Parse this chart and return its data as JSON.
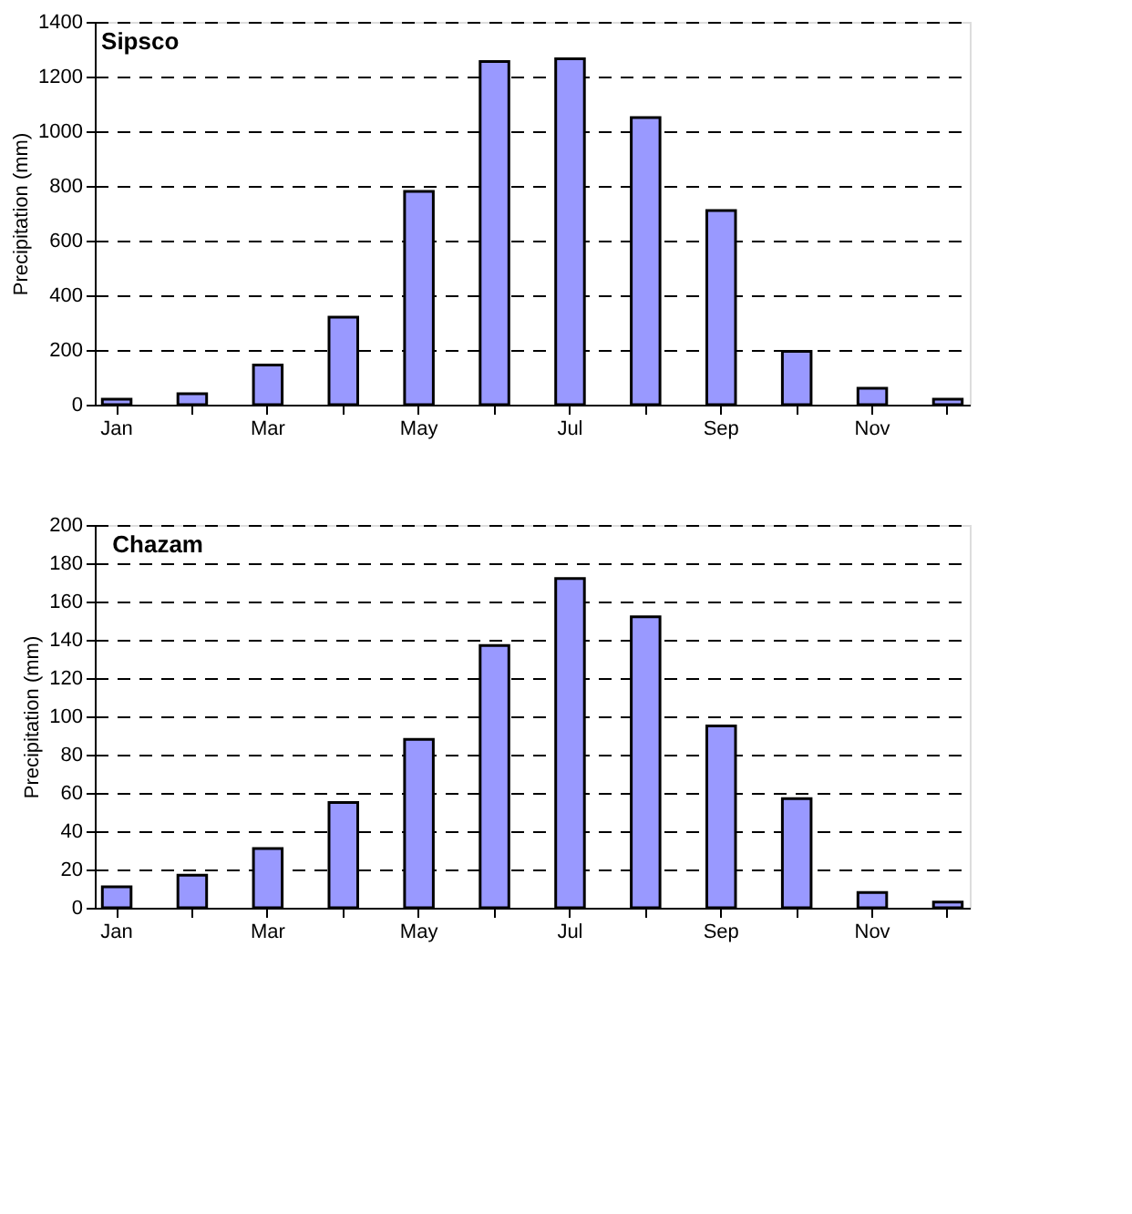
{
  "chart_data": [
    {
      "type": "bar",
      "title": "Sipsco",
      "ylabel": "Precipitation (mm)",
      "categories": [
        "Jan",
        null,
        "Mar",
        null,
        "May",
        null,
        "Jul",
        null,
        "Sep",
        null,
        "Nov",
        null
      ],
      "values": [
        20,
        40,
        145,
        320,
        780,
        1255,
        1265,
        1050,
        710,
        195,
        60,
        20
      ],
      "color": "#9999ff",
      "ylim": [
        0,
        1400
      ],
      "yticks": [
        0,
        200,
        400,
        600,
        800,
        1000,
        1200,
        1400
      ],
      "grid": "y"
    },
    {
      "type": "bar",
      "title": "Chazam",
      "ylabel": "Precipitation (mm)",
      "categories": [
        "Jan",
        null,
        "Mar",
        null,
        "May",
        null,
        "Jul",
        null,
        "Sep",
        null,
        "Nov",
        null
      ],
      "values": [
        11,
        17,
        31,
        55,
        88,
        137,
        172,
        152,
        95,
        57,
        8,
        3
      ],
      "color": "#9999ff",
      "ylim": [
        0,
        200
      ],
      "yticks": [
        0,
        20,
        40,
        60,
        80,
        100,
        120,
        140,
        160,
        180,
        200
      ],
      "grid": "y"
    }
  ]
}
